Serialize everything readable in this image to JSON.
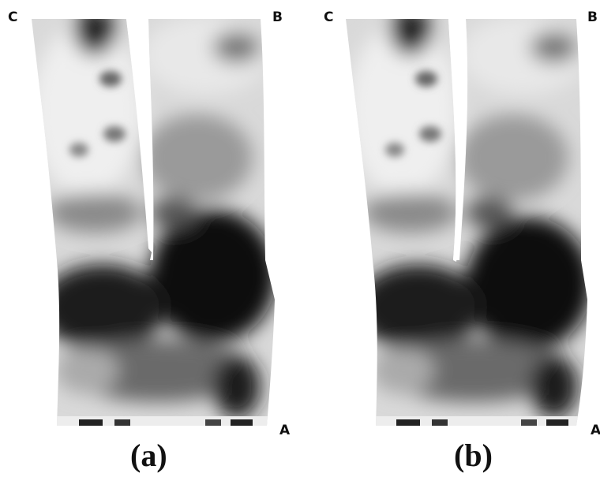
{
  "panels": [
    {
      "id": "a",
      "caption": "(a)",
      "corner_labels": {
        "top_left": "C",
        "top_right": "B",
        "bottom_right": "A"
      }
    },
    {
      "id": "b",
      "caption": "(b)",
      "corner_labels": {
        "top_left": "C",
        "top_right": "B",
        "bottom_right": "A"
      }
    }
  ],
  "colors": {
    "dark": "#111111",
    "light": "#f2f2f2",
    "background": "#ffffff"
  }
}
